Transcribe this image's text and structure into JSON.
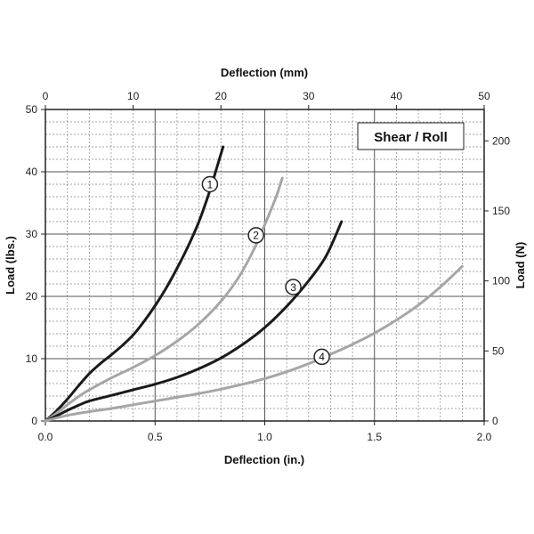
{
  "chart_data": {
    "type": "line",
    "title": "Shear / Roll",
    "xlabel_bottom": "Deflection (in.)",
    "xlabel_top": "Deflection (mm)",
    "ylabel_left": "Load (lbs.)",
    "ylabel_right": "Load (N)",
    "xlim": [
      0,
      2.0
    ],
    "ylim": [
      0,
      50
    ],
    "x_top_lim": [
      0,
      50
    ],
    "y_right_lim": [
      0,
      222.4
    ],
    "x_ticks": [
      "0.0",
      "0.5",
      "1.0",
      "1.5",
      "2.0"
    ],
    "x_tick_values": [
      0,
      0.5,
      1.0,
      1.5,
      2.0
    ],
    "y_ticks": [
      "0",
      "10",
      "20",
      "30",
      "40",
      "50"
    ],
    "y_tick_values": [
      0,
      10,
      20,
      30,
      40,
      50
    ],
    "x_top_ticks": [
      "0",
      "10",
      "20",
      "30",
      "40",
      "50"
    ],
    "x_top_tick_values": [
      0,
      10,
      20,
      30,
      40,
      50
    ],
    "y_right_ticks": [
      "0",
      "50",
      "100",
      "150",
      "200"
    ],
    "y_right_tick_values": [
      0,
      50,
      100,
      150,
      200
    ],
    "grid": true,
    "series": [
      {
        "label": "1",
        "color": "#1a1a1a",
        "label_at": [
          0.75,
          38.0
        ],
        "points": [
          [
            0,
            0
          ],
          [
            0.05,
            1.6
          ],
          [
            0.1,
            3.5
          ],
          [
            0.15,
            5.6
          ],
          [
            0.2,
            7.6
          ],
          [
            0.25,
            9.2
          ],
          [
            0.3,
            10.6
          ],
          [
            0.35,
            12.1
          ],
          [
            0.4,
            13.8
          ],
          [
            0.45,
            16.0
          ],
          [
            0.5,
            18.5
          ],
          [
            0.55,
            21.3
          ],
          [
            0.6,
            24.5
          ],
          [
            0.65,
            28.0
          ],
          [
            0.7,
            32.0
          ],
          [
            0.75,
            37.0
          ],
          [
            0.78,
            40.5
          ],
          [
            0.81,
            44.0
          ]
        ]
      },
      {
        "label": "2",
        "color": "#a6a6a6",
        "label_at": [
          0.96,
          29.8
        ],
        "points": [
          [
            0,
            0
          ],
          [
            0.05,
            1.2
          ],
          [
            0.1,
            2.6
          ],
          [
            0.15,
            3.9
          ],
          [
            0.2,
            5.0
          ],
          [
            0.3,
            6.9
          ],
          [
            0.4,
            8.6
          ],
          [
            0.5,
            10.5
          ],
          [
            0.6,
            12.8
          ],
          [
            0.7,
            15.6
          ],
          [
            0.8,
            19.2
          ],
          [
            0.88,
            23.0
          ],
          [
            0.95,
            27.5
          ],
          [
            1.0,
            31.5
          ],
          [
            1.05,
            35.8
          ],
          [
            1.08,
            39.0
          ]
        ]
      },
      {
        "label": "3",
        "color": "#1a1a1a",
        "label_at": [
          1.13,
          21.5
        ],
        "points": [
          [
            0,
            0
          ],
          [
            0.05,
            0.8
          ],
          [
            0.1,
            1.7
          ],
          [
            0.15,
            2.5
          ],
          [
            0.2,
            3.2
          ],
          [
            0.3,
            4.1
          ],
          [
            0.4,
            5.0
          ],
          [
            0.5,
            5.9
          ],
          [
            0.6,
            7.0
          ],
          [
            0.7,
            8.4
          ],
          [
            0.8,
            10.1
          ],
          [
            0.9,
            12.3
          ],
          [
            1.0,
            15.0
          ],
          [
            1.1,
            18.4
          ],
          [
            1.2,
            22.5
          ],
          [
            1.28,
            26.5
          ],
          [
            1.35,
            32.0
          ]
        ]
      },
      {
        "label": "4",
        "color": "#a6a6a6",
        "label_at": [
          1.26,
          10.3
        ],
        "points": [
          [
            0,
            0
          ],
          [
            0.1,
            0.9
          ],
          [
            0.2,
            1.5
          ],
          [
            0.3,
            2.0
          ],
          [
            0.4,
            2.6
          ],
          [
            0.5,
            3.2
          ],
          [
            0.6,
            3.8
          ],
          [
            0.7,
            4.4
          ],
          [
            0.8,
            5.1
          ],
          [
            0.9,
            5.9
          ],
          [
            1.0,
            6.8
          ],
          [
            1.1,
            7.9
          ],
          [
            1.2,
            9.2
          ],
          [
            1.3,
            10.7
          ],
          [
            1.4,
            12.3
          ],
          [
            1.5,
            14.1
          ],
          [
            1.6,
            16.2
          ],
          [
            1.7,
            18.6
          ],
          [
            1.8,
            21.5
          ],
          [
            1.9,
            24.8
          ]
        ]
      }
    ]
  }
}
